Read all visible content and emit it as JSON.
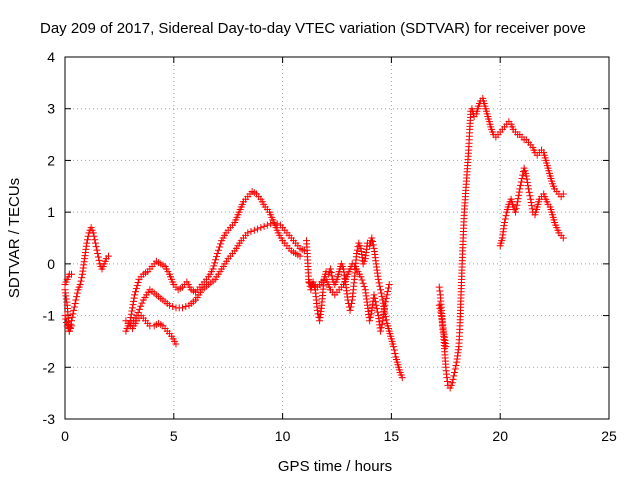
{
  "chart_data": {
    "type": "scatter",
    "title": "Day 209 of 2017, Sidereal Day-to-day VTEC variation (SDTVAR) for receiver pove",
    "xlabel": "GPS time / hours",
    "ylabel": "SDTVAR / TECUs",
    "xlim": [
      0,
      25
    ],
    "ylim": [
      -3,
      4
    ],
    "xticks": [
      0,
      5,
      10,
      15,
      20,
      25
    ],
    "yticks": [
      -3,
      -2,
      -1,
      0,
      1,
      2,
      3,
      4
    ],
    "xtick_labels": [
      "0",
      "5",
      "10",
      "15",
      "20",
      "25"
    ],
    "ytick_labels": [
      "-3",
      "-2",
      "-1",
      "0",
      "1",
      "2",
      "3",
      "4"
    ],
    "grid": true,
    "marker": "plus",
    "colors": {
      "series": "#ff0000",
      "grid": "#a0a0a0",
      "axis": "#000000"
    },
    "segments": [
      [
        [
          0.0,
          -0.5
        ],
        [
          0.1,
          -0.8
        ],
        [
          0.2,
          -1.3
        ],
        [
          0.3,
          -1.1
        ],
        [
          0.4,
          -0.9
        ],
        [
          0.5,
          -0.7
        ],
        [
          0.6,
          -0.5
        ],
        [
          0.7,
          -0.4
        ],
        [
          0.8,
          -0.2
        ],
        [
          0.9,
          0.1
        ],
        [
          1.0,
          0.4
        ],
        [
          1.1,
          0.6
        ],
        [
          1.2,
          0.7
        ],
        [
          1.3,
          0.6
        ],
        [
          1.4,
          0.4
        ],
        [
          1.5,
          0.2
        ],
        [
          1.6,
          0.0
        ],
        [
          1.7,
          -0.1
        ],
        [
          1.8,
          0.0
        ],
        [
          1.9,
          0.1
        ],
        [
          2.0,
          0.15
        ]
      ],
      [
        [
          0.0,
          -1.0
        ],
        [
          0.1,
          -1.2
        ],
        [
          0.2,
          -1.3
        ],
        [
          0.3,
          -1.2
        ]
      ],
      [
        [
          0.0,
          -0.4
        ],
        [
          0.1,
          -0.3
        ],
        [
          0.2,
          -0.2
        ],
        [
          0.3,
          -0.2
        ]
      ],
      [
        [
          2.8,
          -1.1
        ],
        [
          3.0,
          -1.2
        ],
        [
          3.1,
          -1.25
        ],
        [
          3.3,
          -1.1
        ],
        [
          3.5,
          -1.0
        ],
        [
          3.7,
          -1.1
        ],
        [
          3.9,
          -1.2
        ],
        [
          4.1,
          -1.2
        ],
        [
          4.3,
          -1.15
        ],
        [
          4.5,
          -1.2
        ],
        [
          4.7,
          -1.3
        ],
        [
          4.9,
          -1.4
        ],
        [
          5.1,
          -1.55
        ]
      ],
      [
        [
          2.8,
          -1.3
        ],
        [
          3.0,
          -1.1
        ],
        [
          3.2,
          -0.6
        ],
        [
          3.4,
          -0.3
        ],
        [
          3.6,
          -0.2
        ],
        [
          3.8,
          -0.15
        ],
        [
          4.0,
          -0.05
        ],
        [
          4.2,
          0.05
        ],
        [
          4.4,
          0.0
        ],
        [
          4.6,
          -0.05
        ],
        [
          4.8,
          -0.2
        ],
        [
          5.0,
          -0.4
        ],
        [
          5.2,
          -0.5
        ],
        [
          5.4,
          -0.45
        ],
        [
          5.6,
          -0.35
        ],
        [
          5.8,
          -0.5
        ],
        [
          6.0,
          -0.55
        ],
        [
          6.2,
          -0.45
        ],
        [
          6.4,
          -0.35
        ],
        [
          6.6,
          -0.25
        ],
        [
          6.8,
          -0.1
        ],
        [
          7.0,
          0.2
        ],
        [
          7.2,
          0.45
        ],
        [
          7.4,
          0.6
        ],
        [
          7.6,
          0.7
        ],
        [
          7.8,
          0.8
        ],
        [
          8.0,
          1.0
        ],
        [
          8.2,
          1.2
        ],
        [
          8.4,
          1.3
        ],
        [
          8.6,
          1.4
        ],
        [
          8.8,
          1.35
        ],
        [
          9.0,
          1.25
        ],
        [
          9.2,
          1.1
        ],
        [
          9.4,
          1.0
        ],
        [
          9.6,
          0.8
        ],
        [
          9.8,
          0.6
        ],
        [
          10.0,
          0.45
        ],
        [
          10.2,
          0.35
        ],
        [
          10.4,
          0.25
        ],
        [
          10.6,
          0.2
        ],
        [
          10.8,
          0.15
        ]
      ],
      [
        [
          3.0,
          -1.2
        ],
        [
          3.3,
          -1.0
        ],
        [
          3.6,
          -0.7
        ],
        [
          3.9,
          -0.5
        ],
        [
          4.2,
          -0.6
        ],
        [
          4.5,
          -0.7
        ],
        [
          4.8,
          -0.8
        ],
        [
          5.1,
          -0.85
        ],
        [
          5.4,
          -0.85
        ],
        [
          5.7,
          -0.8
        ],
        [
          6.0,
          -0.7
        ],
        [
          6.3,
          -0.5
        ],
        [
          6.6,
          -0.4
        ],
        [
          6.9,
          -0.3
        ],
        [
          7.2,
          -0.1
        ],
        [
          7.5,
          0.1
        ],
        [
          7.8,
          0.25
        ],
        [
          8.1,
          0.45
        ],
        [
          8.4,
          0.6
        ],
        [
          8.7,
          0.65
        ],
        [
          9.0,
          0.7
        ],
        [
          9.3,
          0.75
        ],
        [
          9.6,
          0.8
        ],
        [
          9.9,
          0.75
        ],
        [
          10.2,
          0.6
        ],
        [
          10.5,
          0.45
        ],
        [
          10.8,
          0.3
        ],
        [
          11.0,
          0.25
        ]
      ],
      [
        [
          11.1,
          0.45
        ],
        [
          11.2,
          -0.3
        ],
        [
          11.3,
          -0.5
        ],
        [
          11.4,
          -0.35
        ],
        [
          11.5,
          -0.5
        ],
        [
          11.6,
          -0.9
        ],
        [
          11.7,
          -1.1
        ],
        [
          11.8,
          -0.8
        ],
        [
          11.9,
          -0.3
        ],
        [
          12.0,
          -0.15
        ],
        [
          12.1,
          -0.2
        ],
        [
          12.2,
          -0.1
        ],
        [
          12.3,
          -0.3
        ],
        [
          12.4,
          -0.4
        ],
        [
          12.5,
          -0.3
        ],
        [
          12.6,
          -0.15
        ],
        [
          12.7,
          0.0
        ],
        [
          12.8,
          -0.1
        ],
        [
          12.9,
          -0.4
        ],
        [
          13.0,
          -0.7
        ],
        [
          13.1,
          -0.9
        ],
        [
          13.2,
          -0.7
        ],
        [
          13.3,
          -0.3
        ],
        [
          13.4,
          0.2
        ],
        [
          13.5,
          0.4
        ],
        [
          13.6,
          0.3
        ],
        [
          13.7,
          0.0
        ],
        [
          13.8,
          0.1
        ],
        [
          13.9,
          0.4
        ],
        [
          14.0,
          0.35
        ],
        [
          14.1,
          0.5
        ],
        [
          14.2,
          0.3
        ],
        [
          14.3,
          0.0
        ],
        [
          14.4,
          -0.3
        ],
        [
          14.5,
          -0.5
        ],
        [
          14.6,
          -0.7
        ],
        [
          14.7,
          -0.95
        ],
        [
          14.8,
          -1.15
        ],
        [
          14.9,
          -1.3
        ],
        [
          15.0,
          -1.45
        ],
        [
          15.1,
          -1.6
        ],
        [
          15.2,
          -1.8
        ],
        [
          15.3,
          -1.95
        ],
        [
          15.4,
          -2.1
        ],
        [
          15.5,
          -2.2
        ]
      ],
      [
        [
          11.2,
          -0.35
        ],
        [
          11.4,
          -0.4
        ],
        [
          11.6,
          -0.45
        ],
        [
          11.8,
          -0.35
        ],
        [
          12.0,
          -0.3
        ],
        [
          12.2,
          -0.5
        ],
        [
          12.4,
          -0.6
        ],
        [
          12.6,
          -0.5
        ],
        [
          12.8,
          -0.4
        ],
        [
          13.0,
          -0.2
        ],
        [
          13.2,
          0.0
        ],
        [
          13.4,
          -0.1
        ],
        [
          13.6,
          -0.25
        ],
        [
          13.8,
          -0.5
        ],
        [
          13.9,
          -0.8
        ],
        [
          14.0,
          -1.1
        ],
        [
          14.1,
          -0.9
        ],
        [
          14.2,
          -0.6
        ],
        [
          14.3,
          -0.8
        ],
        [
          14.4,
          -1.0
        ],
        [
          14.5,
          -1.3
        ],
        [
          14.6,
          -1.1
        ],
        [
          14.7,
          -0.8
        ],
        [
          14.8,
          -0.6
        ],
        [
          14.9,
          -0.4
        ]
      ],
      [
        [
          17.2,
          -0.45
        ],
        [
          17.25,
          -0.6
        ],
        [
          17.3,
          -0.9
        ],
        [
          17.35,
          -1.2
        ],
        [
          17.4,
          -1.4
        ],
        [
          17.45,
          -1.7
        ],
        [
          17.5,
          -2.0
        ],
        [
          17.55,
          -2.2
        ],
        [
          17.6,
          -2.35
        ],
        [
          17.7,
          -2.4
        ],
        [
          17.8,
          -2.3
        ],
        [
          17.9,
          -2.1
        ],
        [
          18.0,
          -1.9
        ],
        [
          18.1,
          -1.6
        ],
        [
          18.15,
          -1.2
        ],
        [
          18.2,
          -0.6
        ],
        [
          18.25,
          0.0
        ],
        [
          18.3,
          0.5
        ],
        [
          18.35,
          1.0
        ],
        [
          18.4,
          1.3
        ],
        [
          18.45,
          1.6
        ],
        [
          18.5,
          1.9
        ],
        [
          18.55,
          2.2
        ],
        [
          18.6,
          2.6
        ],
        [
          18.65,
          2.95
        ],
        [
          18.7,
          3.0
        ],
        [
          18.8,
          2.85
        ],
        [
          18.9,
          2.9
        ],
        [
          19.0,
          3.05
        ],
        [
          19.1,
          3.15
        ],
        [
          19.2,
          3.2
        ],
        [
          19.3,
          3.05
        ],
        [
          19.4,
          2.9
        ],
        [
          19.5,
          2.75
        ],
        [
          19.6,
          2.6
        ],
        [
          19.7,
          2.5
        ],
        [
          19.8,
          2.45
        ],
        [
          19.9,
          2.5
        ],
        [
          20.0,
          2.55
        ],
        [
          20.1,
          2.6
        ],
        [
          20.2,
          2.65
        ],
        [
          20.3,
          2.7
        ],
        [
          20.4,
          2.75
        ],
        [
          20.5,
          2.7
        ],
        [
          20.6,
          2.6
        ],
        [
          20.7,
          2.55
        ],
        [
          20.8,
          2.5
        ],
        [
          20.9,
          2.5
        ],
        [
          21.0,
          2.45
        ],
        [
          21.1,
          2.4
        ],
        [
          21.2,
          2.4
        ],
        [
          21.3,
          2.35
        ],
        [
          21.4,
          2.3
        ],
        [
          21.5,
          2.25
        ],
        [
          21.6,
          2.15
        ],
        [
          21.7,
          2.1
        ],
        [
          21.8,
          2.15
        ],
        [
          21.9,
          2.2
        ],
        [
          22.0,
          2.15
        ],
        [
          22.1,
          2.0
        ],
        [
          22.2,
          1.85
        ],
        [
          22.3,
          1.7
        ],
        [
          22.4,
          1.55
        ],
        [
          22.5,
          1.45
        ],
        [
          22.6,
          1.4
        ],
        [
          22.7,
          1.35
        ],
        [
          22.8,
          1.3
        ],
        [
          22.9,
          1.35
        ]
      ],
      [
        [
          17.2,
          -0.8
        ],
        [
          17.3,
          -1.0
        ],
        [
          17.4,
          -1.3
        ],
        [
          17.5,
          -1.6
        ]
      ],
      [
        [
          20.0,
          0.35
        ],
        [
          20.1,
          0.5
        ],
        [
          20.2,
          0.8
        ],
        [
          20.3,
          1.0
        ],
        [
          20.4,
          1.15
        ],
        [
          20.5,
          1.25
        ],
        [
          20.6,
          1.1
        ],
        [
          20.7,
          1.0
        ],
        [
          20.8,
          1.2
        ],
        [
          20.9,
          1.45
        ],
        [
          21.0,
          1.65
        ],
        [
          21.1,
          1.85
        ],
        [
          21.2,
          1.7
        ],
        [
          21.3,
          1.45
        ],
        [
          21.4,
          1.25
        ],
        [
          21.5,
          1.0
        ],
        [
          21.6,
          0.95
        ],
        [
          21.7,
          1.1
        ],
        [
          21.8,
          1.25
        ],
        [
          21.9,
          1.3
        ],
        [
          22.0,
          1.35
        ],
        [
          22.1,
          1.25
        ],
        [
          22.2,
          1.15
        ],
        [
          22.3,
          1.1
        ],
        [
          22.4,
          0.95
        ],
        [
          22.5,
          0.8
        ],
        [
          22.6,
          0.7
        ],
        [
          22.7,
          0.6
        ],
        [
          22.8,
          0.55
        ],
        [
          22.9,
          0.5
        ]
      ]
    ]
  }
}
